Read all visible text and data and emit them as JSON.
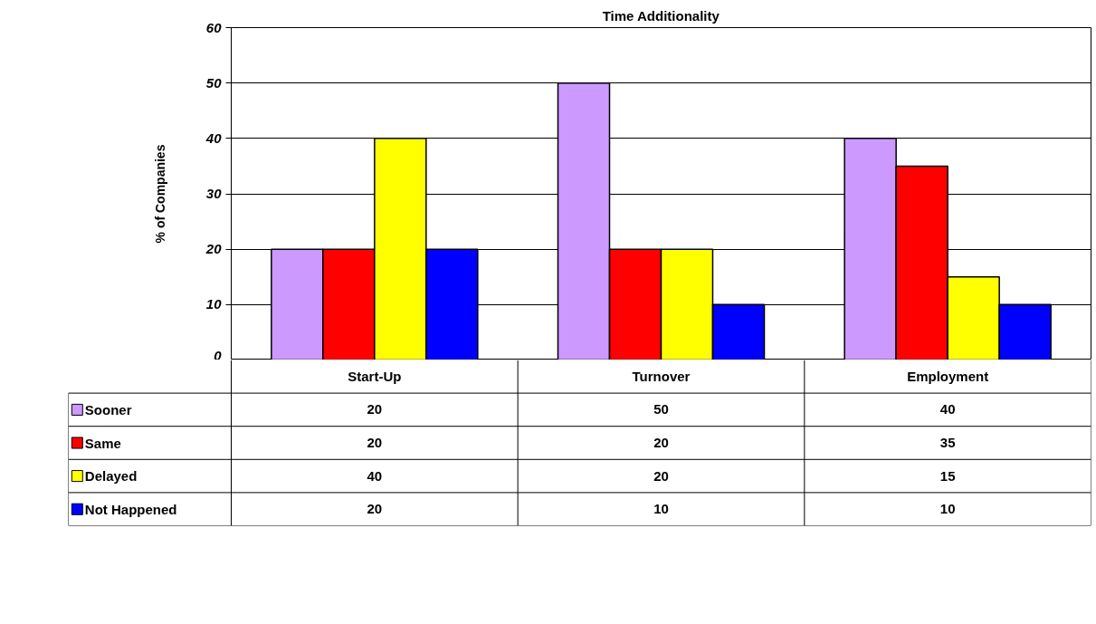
{
  "chart_data": {
    "type": "bar",
    "title": "Time Additionality",
    "ylabel": "% of Companies",
    "categories": [
      "Start-Up",
      "Turnover",
      "Employment"
    ],
    "series": [
      {
        "name": "Sooner",
        "color": "#cc99ff",
        "values": [
          20,
          50,
          40
        ]
      },
      {
        "name": "Same",
        "color": "#ff0000",
        "values": [
          20,
          20,
          35
        ]
      },
      {
        "name": "Delayed",
        "color": "#ffff00",
        "values": [
          40,
          20,
          15
        ]
      },
      {
        "name": "Not Happened",
        "color": "#0000ff",
        "values": [
          20,
          10,
          10
        ]
      }
    ],
    "ylim": [
      0,
      60
    ],
    "yticks": [
      0,
      10,
      20,
      30,
      40,
      50,
      60
    ],
    "grid": "y",
    "legend": "bottom",
    "data_labels": true
  }
}
